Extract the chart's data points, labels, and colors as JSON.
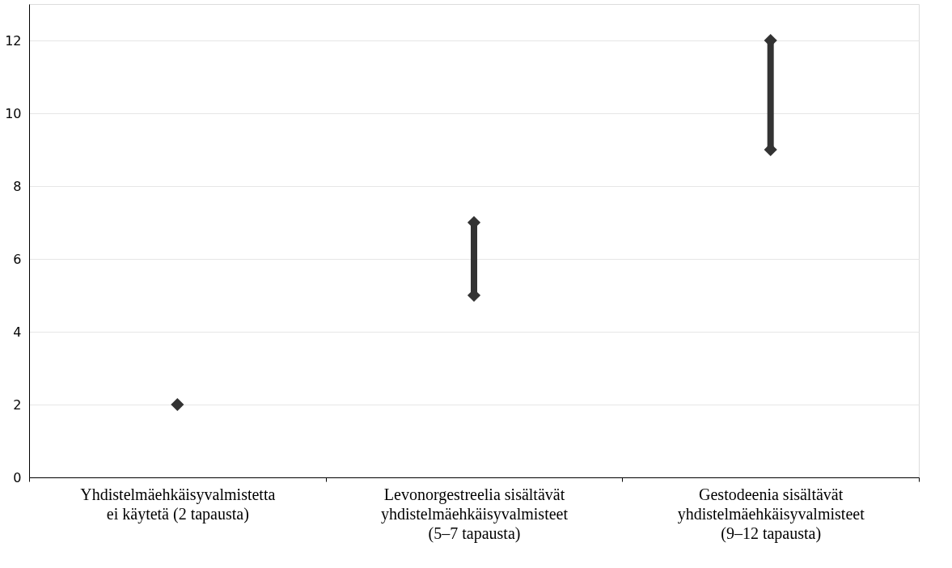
{
  "chart_data": {
    "type": "scatter",
    "categories": [
      "Yhdistelmäehkäisyvalmistetta ei käytetä (2 tapausta)",
      "Levonorgestreelia sisältävät yhdistelmäehkäisyvalmisteet (5–7 tapausta)",
      "Gestodeenia sisältävät yhdistelmäehkäisyvalmisteet (9–12 tapausta)"
    ],
    "series": [
      {
        "type": "bar",
        "color": "#333333",
        "base": [
          null,
          5,
          9
        ],
        "values": [
          null,
          2,
          3
        ]
      },
      {
        "color": "#333333",
        "values": [
          2,
          5,
          9
        ]
      },
      {
        "color": "#333333",
        "values": [
          null,
          7,
          12
        ]
      }
    ],
    "marker": "diamond",
    "ylim": [
      0,
      13
    ],
    "yticks": [
      0,
      2,
      4,
      6,
      8,
      10,
      12
    ],
    "grid": "y"
  }
}
